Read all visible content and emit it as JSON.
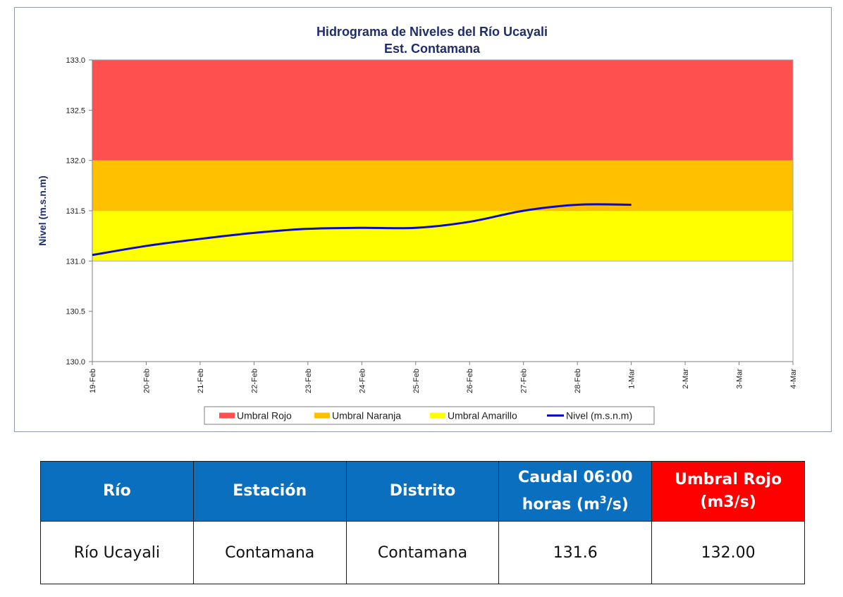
{
  "chart_data": {
    "type": "line",
    "title": "Hidrograma de Niveles del Río Ucayali",
    "subtitle": "Est. Contamana",
    "ylabel": "Nivel (m.s.n.m)",
    "xlabel": "",
    "ylim": [
      130.0,
      133.0
    ],
    "y_ticks": [
      "130.0",
      "130.5",
      "131.0",
      "131.5",
      "132.0",
      "132.5",
      "133.0"
    ],
    "x_ticks": [
      "19-Feb",
      "20-Feb",
      "21-Feb",
      "22-Feb",
      "23-Feb",
      "24-Feb",
      "25-Feb",
      "26-Feb",
      "27-Feb",
      "28-Feb",
      "1-Mar",
      "2-Mar",
      "3-Mar",
      "4-Mar"
    ],
    "bands": [
      {
        "name": "Umbral Rojo",
        "from": 132.0,
        "to": 133.0,
        "color": "#ff5050"
      },
      {
        "name": "Umbral Naranja",
        "from": 131.5,
        "to": 132.0,
        "color": "#ffc000"
      },
      {
        "name": "Umbral Amarillo",
        "from": 131.0,
        "to": 131.5,
        "color": "#ffff00"
      }
    ],
    "series": [
      {
        "name": "Nivel (m.s.n.m)",
        "color": "#0a0ac8",
        "x": [
          "19-Feb",
          "20-Feb",
          "21-Feb",
          "22-Feb",
          "23-Feb",
          "24-Feb",
          "25-Feb",
          "26-Feb",
          "27-Feb",
          "28-Feb",
          "1-Mar"
        ],
        "values": [
          131.06,
          131.15,
          131.22,
          131.28,
          131.32,
          131.33,
          131.33,
          131.39,
          131.5,
          131.56,
          131.56
        ]
      }
    ],
    "legend_position": "bottom",
    "grid": false
  },
  "table": {
    "headers": {
      "rio": "Río",
      "estacion": "Estación",
      "distrito": "Distrito",
      "caudal_line1": "Caudal 06:00",
      "caudal_line2_pre": "horas (m",
      "caudal_sup": "3",
      "caudal_line2_post": "/s)",
      "umbral_line1": "Umbral Rojo",
      "umbral_line2": "(m3/s)"
    },
    "row": {
      "rio": "Río Ucayali",
      "estacion": "Contamana",
      "distrito": "Contamana",
      "caudal": "131.6",
      "umbral": "132.00"
    },
    "colors": {
      "header": "#0b6fbf",
      "header_alert": "#ff0000"
    }
  }
}
